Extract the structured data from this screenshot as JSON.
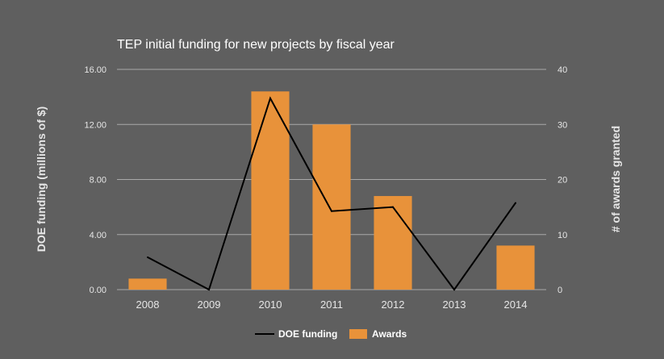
{
  "chart_data": {
    "type": "bar",
    "title": "TEP initial funding for new projects by fiscal year",
    "categories": [
      "2008",
      "2009",
      "2010",
      "2011",
      "2012",
      "2013",
      "2014"
    ],
    "series": [
      {
        "name": "DOE funding",
        "kind": "line",
        "axis": "left",
        "color": "#000000",
        "values": [
          2.35,
          0.0,
          13.9,
          5.7,
          6.0,
          0.0,
          6.3
        ]
      },
      {
        "name": "Awards",
        "kind": "bar",
        "axis": "right",
        "color": "#e8923a",
        "values": [
          2,
          0,
          36,
          30,
          17,
          0,
          8
        ]
      }
    ],
    "y_left": {
      "label": "DOE funding (millions of $)",
      "ylim": [
        0,
        16
      ],
      "ticks": [
        "0.00",
        "4.00",
        "8.00",
        "12.00",
        "16.00"
      ]
    },
    "y_right": {
      "label": "# of awards granted",
      "ylim": [
        0,
        40
      ],
      "ticks": [
        "0",
        "10",
        "20",
        "30",
        "40"
      ]
    },
    "grid": true,
    "legend": "bottom"
  }
}
